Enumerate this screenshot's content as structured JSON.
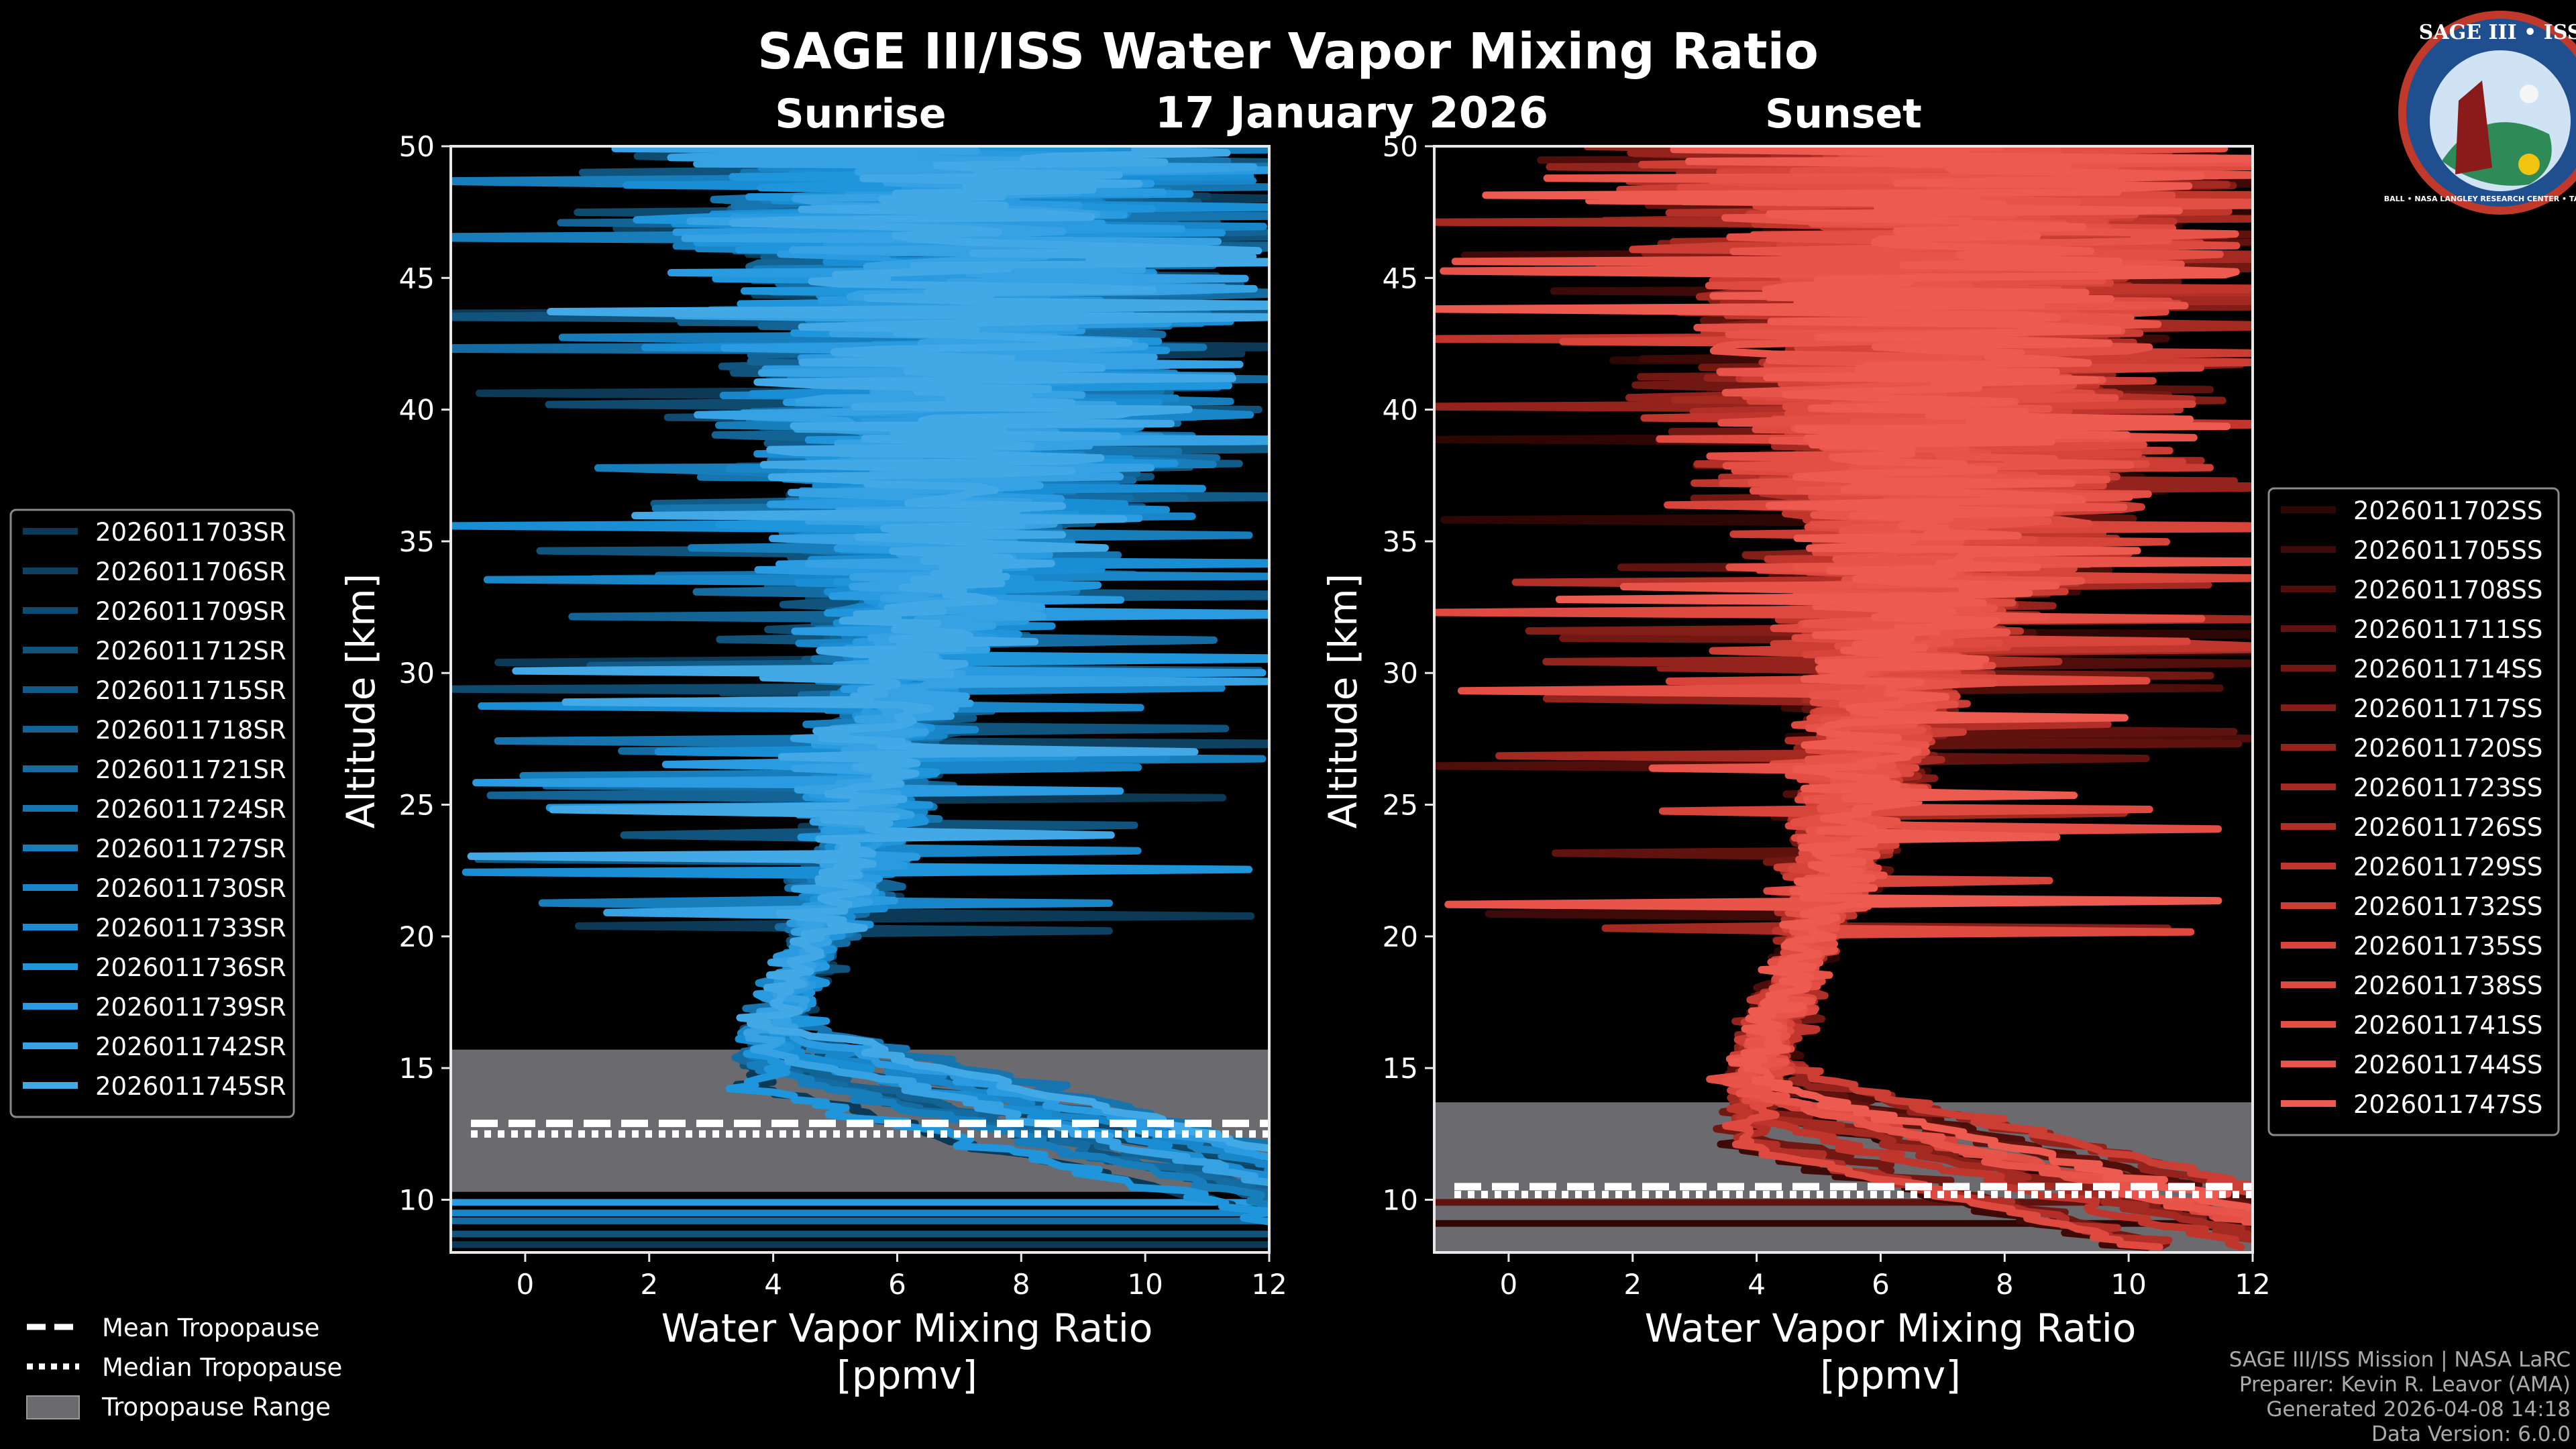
{
  "header": {
    "title": "SAGE III/ISS Water Vapor Mixing Ratio",
    "date": "17 January 2026"
  },
  "logo": {
    "text_top": "SAGE III • ISS",
    "text_bottom": "BALL • NASA LANGLEY RESEARCH CENTER • TAS-I • ESA"
  },
  "colors": {
    "background": "#000000",
    "sunrise": "#1a8fd6",
    "sunset": "#e8534a",
    "tropopause_band": "#6b6b6f"
  },
  "chart_data": [
    {
      "id": "sunrise",
      "type": "line",
      "title": "Sunrise",
      "xlabel": "Water Vapor Mixing Ratio",
      "xlabel_units": "[ppmv]",
      "ylabel": "Altitude [km]",
      "xlim": [
        -1.2,
        12
      ],
      "ylim": [
        8,
        50
      ],
      "xticks": [
        0,
        2,
        4,
        6,
        8,
        10,
        12
      ],
      "yticks": [
        10,
        15,
        20,
        25,
        30,
        35,
        40,
        45,
        50
      ],
      "tropopause": {
        "min": 10.3,
        "max": 15.7,
        "mean": 12.9,
        "median": 12.5
      },
      "bottom_lines_km": [
        8.3,
        8.7,
        9.2,
        9.5,
        9.9
      ],
      "series": [
        {
          "name": "2026011703SR",
          "color": "#0c3956"
        },
        {
          "name": "2026011706SR",
          "color": "#0d4262"
        },
        {
          "name": "2026011709SR",
          "color": "#0f4a6f"
        },
        {
          "name": "2026011712SR",
          "color": "#10537c"
        },
        {
          "name": "2026011715SR",
          "color": "#115b88"
        },
        {
          "name": "2026011718SR",
          "color": "#136495"
        },
        {
          "name": "2026011721SR",
          "color": "#146ca2"
        },
        {
          "name": "2026011724SR",
          "color": "#1675af"
        },
        {
          "name": "2026011727SR",
          "color": "#177dbb"
        },
        {
          "name": "2026011730SR",
          "color": "#1886c8"
        },
        {
          "name": "2026011733SR",
          "color": "#1a8ed5"
        },
        {
          "name": "2026011736SR",
          "color": "#1f95dc"
        },
        {
          "name": "2026011739SR",
          "color": "#2a9be0"
        },
        {
          "name": "2026011742SR",
          "color": "#36a2e3"
        },
        {
          "name": "2026011745SR",
          "color": "#43a9e6"
        }
      ]
    },
    {
      "id": "sunset",
      "type": "line",
      "title": "Sunset",
      "xlabel": "Water Vapor Mixing Ratio",
      "xlabel_units": "[ppmv]",
      "ylabel": "Altitude [km]",
      "xlim": [
        -1.2,
        12
      ],
      "ylim": [
        8,
        50
      ],
      "xticks": [
        0,
        2,
        4,
        6,
        8,
        10,
        12
      ],
      "yticks": [
        10,
        15,
        20,
        25,
        30,
        35,
        40,
        45,
        50
      ],
      "tropopause": {
        "min": 8,
        "max": 13.7,
        "mean": 10.5,
        "median": 10.2
      },
      "bottom_lines_km": [
        9.1,
        9.9
      ],
      "series": [
        {
          "name": "2026011702SS",
          "color": "#2e0705"
        },
        {
          "name": "2026011705SS",
          "color": "#3e0a07"
        },
        {
          "name": "2026011708SS",
          "color": "#4f0e0a"
        },
        {
          "name": "2026011711SS",
          "color": "#60130e"
        },
        {
          "name": "2026011714SS",
          "color": "#711813"
        },
        {
          "name": "2026011717SS",
          "color": "#821d17"
        },
        {
          "name": "2026011720SS",
          "color": "#93231c"
        },
        {
          "name": "2026011723SS",
          "color": "#a32921"
        },
        {
          "name": "2026011726SS",
          "color": "#b22f27"
        },
        {
          "name": "2026011729SS",
          "color": "#c0362d"
        },
        {
          "name": "2026011732SS",
          "color": "#cc3d33"
        },
        {
          "name": "2026011735SS",
          "color": "#d6443a"
        },
        {
          "name": "2026011738SS",
          "color": "#de4a40"
        },
        {
          "name": "2026011741SS",
          "color": "#e44f45"
        },
        {
          "name": "2026011744SS",
          "color": "#e8544a"
        },
        {
          "name": "2026011747SS",
          "color": "#ec5a50"
        }
      ]
    }
  ],
  "tropopause_legend": [
    {
      "label": "Mean Tropopause",
      "style": "dashed"
    },
    {
      "label": "Median Tropopause",
      "style": "dotted"
    },
    {
      "label": "Tropopause Range",
      "style": "band"
    }
  ],
  "footer": [
    "SAGE III/ISS Mission | NASA LaRC",
    "Preparer: Kevin R. Leavor (AMA)",
    "Generated 2026-04-08 14:18",
    "Data Version: 6.0.0"
  ]
}
